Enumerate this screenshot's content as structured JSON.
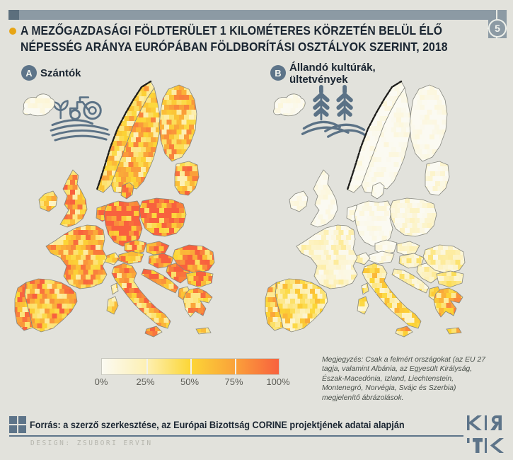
{
  "header": {
    "badge_number": "5",
    "bullet_color": "#e7a515",
    "title_line1": "A MEZŐGAZDASÁGI FÖLDTERÜLET 1 KILOMÉTERES KÖRZETÉN BELÜL ÉLŐ",
    "title_line2": "NÉPESSÉG ARÁNYA EURÓPÁBAN FÖLDBORÍTÁSI OSZTÁLYOK SZERINT, 2018"
  },
  "panels": [
    {
      "badge": "A",
      "label": "Szántók",
      "icon": "tractor-plowed-field-icon"
    },
    {
      "badge": "B",
      "label": "Állandó kultúrák,\nültetvények",
      "icon": "wheat-plantation-icon"
    }
  ],
  "legend": {
    "gradient": [
      "#fbfaf2",
      "#fdf0b4",
      "#fcd636",
      "#faa23a",
      "#f8613e"
    ],
    "ticks": [
      "0%",
      "25%",
      "50%",
      "75%",
      "100%"
    ]
  },
  "note": "Megjegyzés: Csak a felmért országokat (az EU 27 tagja, valamint Albánia, az Egyesült Királyság, Észak-Macedónia, Izland, Liechtenstein, Montenegró, Norvégia, Svájc és Szerbia) megjelenítő ábrázolások.",
  "footer": {
    "source": "Forrás: a szerző szerkesztése, az Európai Bizottság CORINE projektjének adatai alapján",
    "design_credit": "DESIGN: ZSUBORI ERVIN",
    "logo_name": "KRTK"
  },
  "colors": {
    "slate": "#5d7489",
    "bar": "#8c9aa4",
    "bar_dark": "#5c6f7d",
    "ink": "#1a2531",
    "bg": "#e2e2dc"
  },
  "chart_data": [
    {
      "type": "heatmap",
      "subtype": "choropleth-map",
      "title": "Szántók",
      "value_meaning": "a mezőgazdasági földterület 1 km-es körzetén belül élő népesség aránya (%), 2018",
      "scale_percent": [
        0,
        100
      ],
      "legend_ticks": [
        "0%",
        "25%",
        "50%",
        "75%",
        "100%"
      ],
      "regions": {
        "iceland": 3,
        "norway": 48,
        "sweden": 55,
        "finland": 55,
        "baltics": 62,
        "denmark": 72,
        "uk": 66,
        "ireland": 50,
        "benelux": 76,
        "germany": 90,
        "poland": 88,
        "czechia": 82,
        "slovakia": 80,
        "austria": 62,
        "switzerland": 58,
        "hungary": 86,
        "france": 62,
        "spain": 68,
        "portugal": 64,
        "italy": 66,
        "sicily": 62,
        "sardinia": 48,
        "corsica": 42,
        "croatia": 70,
        "serbia": 76,
        "romania": 84,
        "bulgaria": 72,
        "albania": 70,
        "greece": 60,
        "crete": 55
      }
    },
    {
      "type": "heatmap",
      "subtype": "choropleth-map",
      "title": "Állandó kultúrák, ültetvények",
      "value_meaning": "a mezőgazdasági földterület 1 km-es körzetén belül élő népesség aránya (%), 2018",
      "scale_percent": [
        0,
        100
      ],
      "legend_ticks": [
        "0%",
        "25%",
        "50%",
        "75%",
        "100%"
      ],
      "regions": {
        "iceland": 1,
        "norway": 1,
        "sweden": 1,
        "finland": 1,
        "baltics": 7,
        "denmark": 3,
        "uk": 2,
        "ireland": 2,
        "benelux": 5,
        "germany": 3,
        "poland": 8,
        "czechia": 5,
        "slovakia": 12,
        "austria": 6,
        "switzerland": 14,
        "hungary": 22,
        "france": 15,
        "spain": 42,
        "portugal": 48,
        "italy": 40,
        "sicily": 52,
        "sardinia": 32,
        "corsica": 30,
        "croatia": 24,
        "serbia": 20,
        "romania": 22,
        "bulgaria": 24,
        "albania": 35,
        "greece": 55,
        "crete": 60
      }
    }
  ]
}
